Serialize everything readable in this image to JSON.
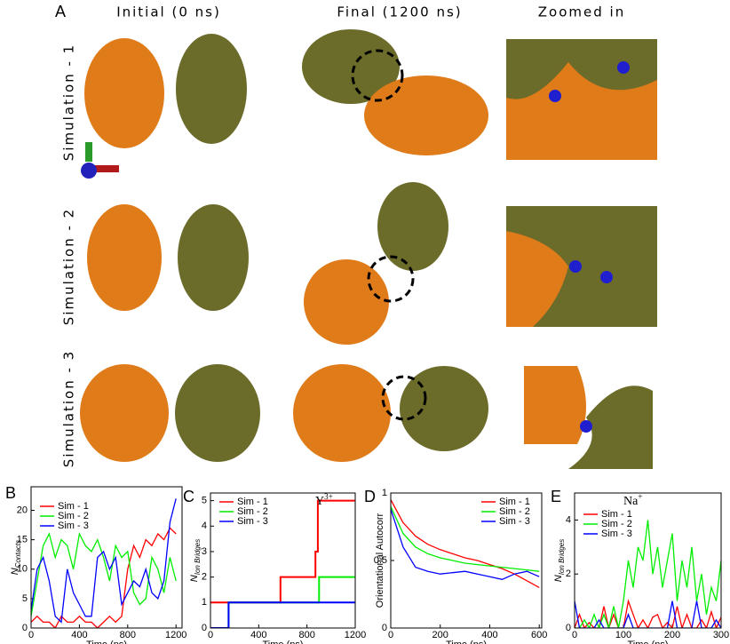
{
  "panel_a": {
    "label": "A",
    "columns": [
      "Initial (0 ns)",
      "Final (1200 ns)",
      "Zoomed in"
    ],
    "rows": [
      "Simulation - 1",
      "Simulation - 2",
      "Simulation - 3"
    ]
  },
  "chart_data": [
    {
      "type": "line",
      "label": "B",
      "xlabel": "Time (ns)",
      "ylabel": "N",
      "ylabel_sub": "Contacts",
      "legend": "upper left",
      "x": [
        0,
        50,
        100,
        150,
        200,
        250,
        300,
        350,
        400,
        450,
        500,
        550,
        600,
        650,
        700,
        750,
        800,
        850,
        900,
        950,
        1000,
        1050,
        1100,
        1150,
        1200
      ],
      "xlim": [
        0,
        1250
      ],
      "xticks": [
        0,
        400,
        800,
        1200
      ],
      "ylim": [
        0,
        24
      ],
      "yticks": [
        0,
        5,
        10,
        15,
        20
      ],
      "series": [
        {
          "name": "Sim - 1",
          "color": "#ff0000",
          "values": [
            1,
            2,
            1,
            1,
            0,
            2,
            1,
            1,
            2,
            1,
            1,
            0,
            1,
            2,
            1,
            2,
            10,
            14,
            12,
            15,
            14,
            16,
            15,
            17,
            16
          ]
        },
        {
          "name": "Sim - 2",
          "color": "#00ee00",
          "values": [
            2,
            8,
            14,
            16,
            12,
            15,
            14,
            10,
            16,
            14,
            13,
            15,
            12,
            8,
            14,
            12,
            13,
            6,
            4,
            5,
            12,
            10,
            6,
            12,
            8
          ]
        },
        {
          "name": "Sim - 3",
          "color": "#0000ff",
          "values": [
            3,
            10,
            12,
            8,
            2,
            1,
            10,
            6,
            4,
            2,
            2,
            12,
            13,
            10,
            12,
            4,
            6,
            8,
            7,
            10,
            6,
            5,
            8,
            18,
            22
          ]
        }
      ]
    },
    {
      "type": "step",
      "label": "C",
      "xlabel": "Time (ns)",
      "ylabel": "N",
      "ylabel_sub": "Ion Bridges",
      "annotation": "Y",
      "annotation_sup": "3+",
      "legend": "upper left",
      "xlim": [
        0,
        1200
      ],
      "xticks": [
        0,
        400,
        800,
        1200
      ],
      "ylim": [
        0,
        5.3
      ],
      "yticks": [
        0,
        1,
        2,
        3,
        4,
        5
      ],
      "series": [
        {
          "name": "Sim - 1",
          "color": "#ff0000",
          "x": [
            0,
            580,
            580,
            870,
            870,
            890,
            890,
            1200
          ],
          "values": [
            1,
            1,
            2,
            2,
            3,
            3,
            5,
            5
          ]
        },
        {
          "name": "Sim - 2",
          "color": "#00ee00",
          "x": [
            0,
            150,
            150,
            900,
            900,
            1200
          ],
          "values": [
            0,
            0,
            1,
            1,
            2,
            2
          ]
        },
        {
          "name": "Sim - 3",
          "color": "#0000ff",
          "x": [
            0,
            150,
            150,
            1200
          ],
          "values": [
            0,
            0,
            1,
            1
          ]
        }
      ]
    },
    {
      "type": "line",
      "label": "D",
      "xlabel": "Time (ns)",
      "ylabel": "Orientational Autocorr",
      "legend": "upper right",
      "x": [
        0,
        50,
        100,
        150,
        200,
        250,
        300,
        350,
        400,
        450,
        500,
        550,
        600
      ],
      "xlim": [
        0,
        610
      ],
      "xticks": [
        0,
        200,
        400,
        600
      ],
      "ylim": [
        0,
        1
      ],
      "yticks": [
        0,
        0.5,
        1
      ],
      "series": [
        {
          "name": "Sim - 1",
          "color": "#ff0000",
          "values": [
            0.95,
            0.78,
            0.68,
            0.62,
            0.58,
            0.55,
            0.52,
            0.5,
            0.47,
            0.44,
            0.4,
            0.35,
            0.3
          ]
        },
        {
          "name": "Sim - 2",
          "color": "#00ee00",
          "values": [
            0.9,
            0.7,
            0.6,
            0.55,
            0.52,
            0.5,
            0.48,
            0.47,
            0.46,
            0.45,
            0.44,
            0.43,
            0.42
          ]
        },
        {
          "name": "Sim - 3",
          "color": "#0000ff",
          "values": [
            0.88,
            0.6,
            0.45,
            0.42,
            0.4,
            0.41,
            0.42,
            0.4,
            0.38,
            0.36,
            0.4,
            0.42,
            0.38
          ]
        }
      ]
    },
    {
      "type": "line",
      "label": "E",
      "xlabel": "Time (ns)",
      "ylabel": "N",
      "ylabel_sub": "Ion Bridges",
      "annotation": "Na",
      "annotation_sup": "+",
      "legend": "upper left",
      "x": [
        0,
        10,
        20,
        30,
        40,
        50,
        60,
        70,
        80,
        90,
        100,
        110,
        120,
        130,
        140,
        150,
        160,
        170,
        180,
        190,
        200,
        210,
        220,
        230,
        240,
        250,
        260,
        270,
        280,
        290,
        300
      ],
      "xlim": [
        0,
        300
      ],
      "xticks": [
        0,
        100,
        200,
        300
      ],
      "ylim": [
        0,
        5
      ],
      "yticks": [
        0,
        2,
        4
      ],
      "series": [
        {
          "name": "Sim - 1",
          "color": "#ff0000",
          "values": [
            0,
            0.5,
            0,
            0.2,
            0,
            0,
            0.8,
            0,
            0.5,
            0,
            0,
            1,
            0.5,
            0,
            0.3,
            0,
            0.4,
            0.5,
            0,
            0.2,
            0,
            0.8,
            0,
            0.5,
            0,
            0,
            0.3,
            0,
            0.6,
            0,
            0.4
          ]
        },
        {
          "name": "Sim - 2",
          "color": "#00ee00",
          "values": [
            0,
            0,
            0.3,
            0,
            0.5,
            0,
            0.5,
            0,
            0.8,
            0,
            1,
            2.5,
            1.5,
            3,
            2.5,
            4,
            2,
            3,
            1.5,
            2.5,
            3.5,
            1,
            2.5,
            1.5,
            3,
            1,
            2,
            0.5,
            1.5,
            1,
            2.5
          ]
        },
        {
          "name": "Sim - 3",
          "color": "#0000ff",
          "values": [
            1,
            0,
            0,
            0,
            0,
            0.3,
            0,
            0,
            0,
            0,
            0,
            0.5,
            0,
            0,
            0,
            0,
            0,
            0,
            0,
            0,
            1,
            0,
            0,
            0,
            0,
            1,
            0,
            0,
            0,
            0.3,
            0
          ]
        }
      ]
    }
  ]
}
